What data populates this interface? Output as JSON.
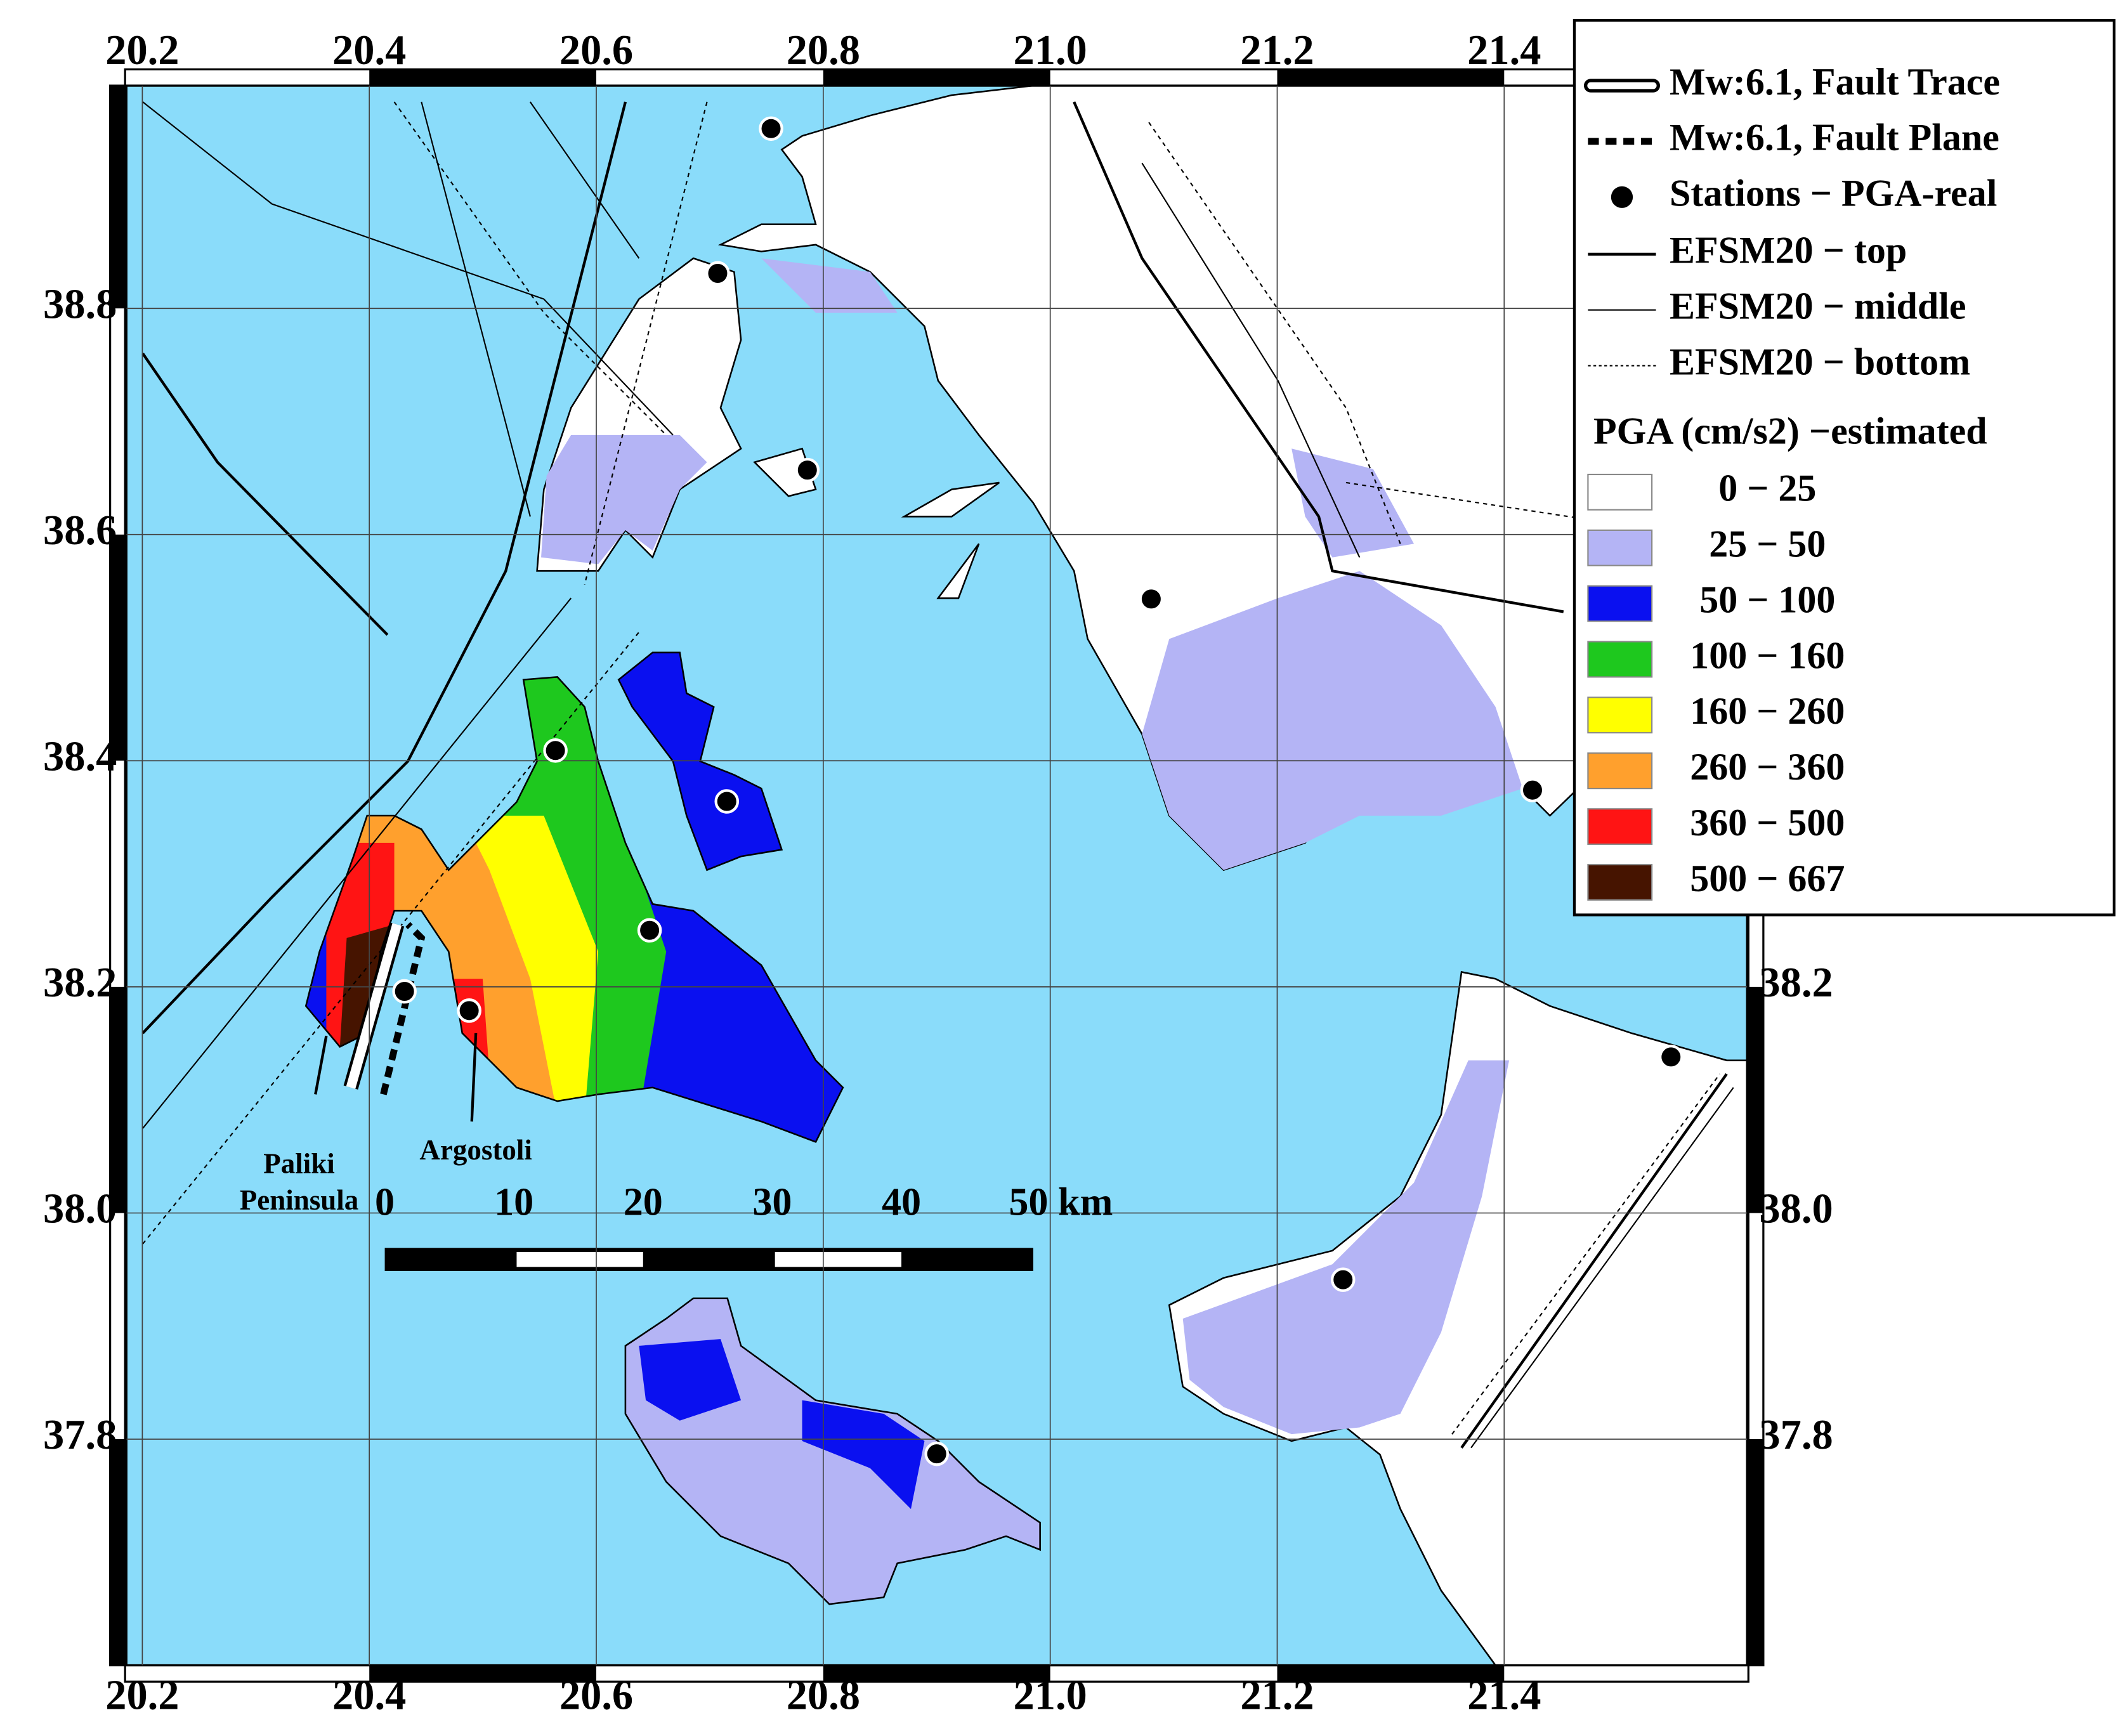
{
  "map": {
    "xlim": [
      20.186,
      21.614
    ],
    "ylim": [
      37.6,
      38.997
    ],
    "lon_ticks": [
      20.2,
      20.4,
      20.6,
      20.8,
      {
        "value": 21,
        "label": "21.0"
      },
      21.2,
      21.4
    ],
    "lat_ticks": [
      38.8,
      38.6,
      38.4,
      38.2,
      {
        "value": 38,
        "label": "38.0"
      },
      37.8
    ],
    "stations": [
      {
        "lon": 20.754,
        "lat": 38.959
      },
      {
        "lon": 20.707,
        "lat": 38.831
      },
      {
        "lon": 20.786,
        "lat": 38.657
      },
      {
        "lon": 21.089,
        "lat": 38.543
      },
      {
        "lon": 20.564,
        "lat": 38.409
      },
      {
        "lon": 20.715,
        "lat": 38.364
      },
      {
        "lon": 20.647,
        "lat": 38.25
      },
      {
        "lon": 20.431,
        "lat": 38.196
      },
      {
        "lon": 20.488,
        "lat": 38.179
      },
      {
        "lon": 21.425,
        "lat": 38.374
      },
      {
        "lon": 21.547,
        "lat": 38.138
      },
      {
        "lon": 21.258,
        "lat": 37.941
      },
      {
        "lon": 20.9,
        "lat": 37.787
      }
    ],
    "legend": {
      "entries": [
        "Mw:6.1, Fault Trace",
        "Mw:6.1, Fault Plane",
        "Stations − PGA-real",
        "EFSM20 − top",
        "EFSM20 − middle",
        "EFSM20 − bottom"
      ],
      "pga_title": "PGA (cm/s2) −estimated",
      "pga_classes": [
        {
          "label": "0 − 25",
          "color": "#ffffff"
        },
        {
          "label": "25 − 50",
          "color": "#b4b4f5"
        },
        {
          "label": "50 − 100",
          "color": "#0a10f0"
        },
        {
          "label": "100 − 160",
          "color": "#1ec81e"
        },
        {
          "label": "160 − 260",
          "color": "#ffff00"
        },
        {
          "label": "260 − 360",
          "color": "#ffa02d"
        },
        {
          "label": "360 − 500",
          "color": "#ff1414"
        },
        {
          "label": "500 − 667",
          "color": "#461400"
        }
      ]
    },
    "labels": {
      "paliki": [
        "Paliki",
        "Peninsula"
      ],
      "argostoli": "Argostoli"
    },
    "scale_bar": [
      "0",
      "10",
      "20",
      "30",
      "40",
      "50 km"
    ]
  }
}
